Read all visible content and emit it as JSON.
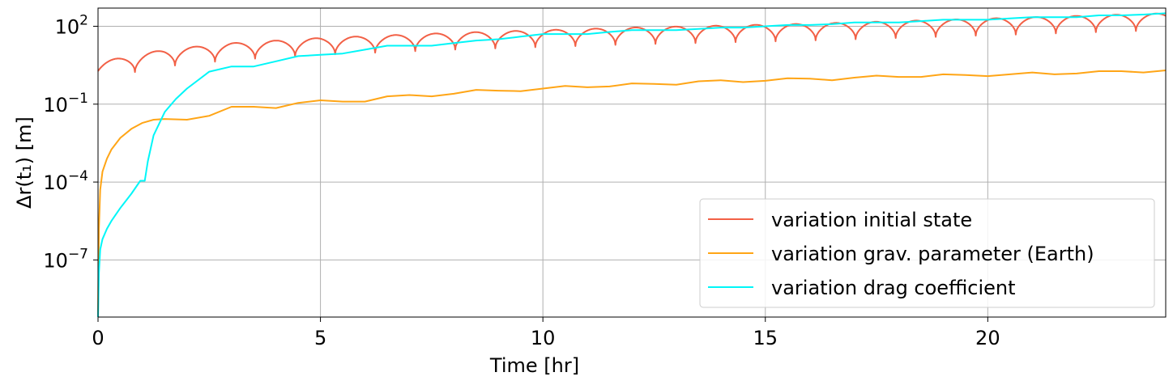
{
  "chart_data": {
    "type": "line",
    "xlabel": "Time [hr]",
    "ylabel": "Δr(t₁) [m]",
    "xlim": [
      0,
      24
    ],
    "ylim_log10": [
      -9.2,
      2.7
    ],
    "y_scale": "log",
    "grid": true,
    "legend_position": "lower-right",
    "x_ticks": [
      0,
      5,
      10,
      15,
      20
    ],
    "x_tick_labels": [
      "0",
      "5",
      "10",
      "15",
      "20"
    ],
    "y_ticks_log10": [
      2,
      -1,
      -4,
      -7
    ],
    "y_tick_labels": [
      {
        "base": "10",
        "exp": "2"
      },
      {
        "base": "10",
        "exp": "−1"
      },
      {
        "base": "10",
        "exp": "−4"
      },
      {
        "base": "10",
        "exp": "−7"
      }
    ],
    "series": [
      {
        "name": "variation initial state",
        "color": "#f26046",
        "model": {
          "kind": "dips",
          "period_hr": 0.9,
          "first_dip_hr": 0.83,
          "envelope_log10": [
            [
              0,
              0.6
            ],
            [
              0.4,
              0.75
            ],
            [
              1.5,
              1.1
            ],
            [
              3,
              1.35
            ],
            [
              5,
              1.55
            ],
            [
              8,
              1.75
            ],
            [
              12,
              1.95
            ],
            [
              16,
              2.1
            ],
            [
              20,
              2.3
            ],
            [
              24,
              2.5
            ]
          ],
          "dip_depth_log10": 0.65
        }
      },
      {
        "name": "variation grav. parameter (Earth)",
        "color": "#ffa516",
        "points": [
          [
            0,
            -9.2
          ],
          [
            0.02,
            -5.8
          ],
          [
            0.05,
            -4.3
          ],
          [
            0.1,
            -3.6
          ],
          [
            0.2,
            -3.1
          ],
          [
            0.3,
            -2.75
          ],
          [
            0.5,
            -2.3
          ],
          [
            0.75,
            -1.95
          ],
          [
            1,
            -1.72
          ],
          [
            1.25,
            -1.6
          ],
          [
            1.5,
            -1.57
          ],
          [
            2,
            -1.6
          ],
          [
            2.5,
            -1.45
          ],
          [
            3,
            -1.1
          ],
          [
            3.5,
            -1.1
          ],
          [
            4,
            -1.15
          ],
          [
            4.5,
            -0.95
          ],
          [
            5,
            -0.85
          ],
          [
            5.5,
            -0.9
          ],
          [
            6,
            -0.9
          ],
          [
            6.5,
            -0.7
          ],
          [
            7,
            -0.65
          ],
          [
            7.5,
            -0.7
          ],
          [
            8,
            -0.6
          ],
          [
            8.5,
            -0.45
          ],
          [
            9,
            -0.48
          ],
          [
            9.5,
            -0.5
          ],
          [
            10,
            -0.4
          ],
          [
            10.5,
            -0.3
          ],
          [
            11,
            -0.35
          ],
          [
            11.5,
            -0.32
          ],
          [
            12,
            -0.2
          ],
          [
            12.5,
            -0.22
          ],
          [
            13,
            -0.25
          ],
          [
            13.5,
            -0.12
          ],
          [
            14,
            -0.08
          ],
          [
            14.5,
            -0.15
          ],
          [
            15,
            -0.1
          ],
          [
            15.5,
            0.0
          ],
          [
            16,
            -0.02
          ],
          [
            16.5,
            -0.08
          ],
          [
            17,
            0.02
          ],
          [
            17.5,
            0.1
          ],
          [
            18,
            0.05
          ],
          [
            18.5,
            0.05
          ],
          [
            19,
            0.15
          ],
          [
            19.5,
            0.12
          ],
          [
            20,
            0.08
          ],
          [
            20.5,
            0.15
          ],
          [
            21,
            0.22
          ],
          [
            21.5,
            0.15
          ],
          [
            22,
            0.18
          ],
          [
            22.5,
            0.27
          ],
          [
            23,
            0.27
          ],
          [
            23.5,
            0.22
          ],
          [
            24,
            0.3
          ]
        ]
      },
      {
        "name": "variation drag coefficient",
        "color": "#00f6f8",
        "points": [
          [
            0,
            -9.2
          ],
          [
            0.02,
            -7.5
          ],
          [
            0.05,
            -6.6
          ],
          [
            0.1,
            -6.2
          ],
          [
            0.2,
            -5.8
          ],
          [
            0.3,
            -5.5
          ],
          [
            0.5,
            -5.0
          ],
          [
            0.75,
            -4.45
          ],
          [
            0.95,
            -3.95
          ],
          [
            1.05,
            -3.95
          ],
          [
            1.12,
            -3.2
          ],
          [
            1.25,
            -2.2
          ],
          [
            1.5,
            -1.3
          ],
          [
            1.75,
            -0.8
          ],
          [
            2,
            -0.4
          ],
          [
            2.5,
            0.25
          ],
          [
            3,
            0.45
          ],
          [
            3.5,
            0.45
          ],
          [
            4,
            0.65
          ],
          [
            4.5,
            0.85
          ],
          [
            5,
            0.9
          ],
          [
            5.5,
            0.95
          ],
          [
            6,
            1.1
          ],
          [
            6.5,
            1.25
          ],
          [
            7,
            1.25
          ],
          [
            7.5,
            1.25
          ],
          [
            8,
            1.35
          ],
          [
            8.5,
            1.45
          ],
          [
            9,
            1.5
          ],
          [
            9.5,
            1.6
          ],
          [
            10,
            1.7
          ],
          [
            10.5,
            1.7
          ],
          [
            11,
            1.7
          ],
          [
            11.5,
            1.78
          ],
          [
            12,
            1.85
          ],
          [
            12.5,
            1.85
          ],
          [
            13,
            1.85
          ],
          [
            13.5,
            1.9
          ],
          [
            14,
            1.95
          ],
          [
            14.5,
            1.95
          ],
          [
            15,
            2.0
          ],
          [
            15.5,
            2.05
          ],
          [
            16,
            2.05
          ],
          [
            16.5,
            2.08
          ],
          [
            17,
            2.15
          ],
          [
            17.5,
            2.15
          ],
          [
            18,
            2.15
          ],
          [
            18.5,
            2.2
          ],
          [
            19,
            2.25
          ],
          [
            19.5,
            2.25
          ],
          [
            20,
            2.25
          ],
          [
            20.5,
            2.3
          ],
          [
            21,
            2.35
          ],
          [
            21.5,
            2.35
          ],
          [
            22,
            2.35
          ],
          [
            22.5,
            2.42
          ],
          [
            23,
            2.42
          ],
          [
            23.5,
            2.45
          ],
          [
            24,
            2.5
          ]
        ]
      }
    ]
  }
}
